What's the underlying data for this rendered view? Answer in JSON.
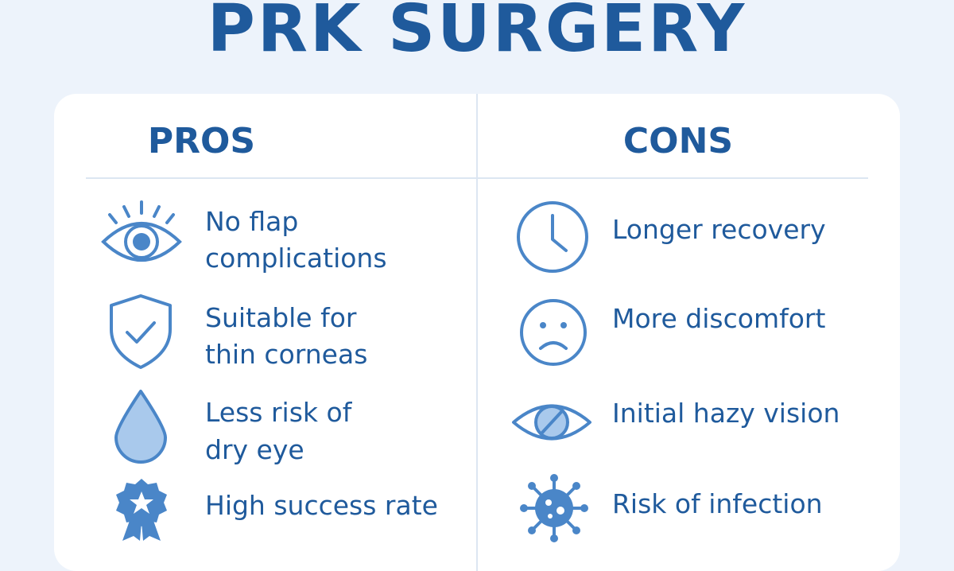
{
  "title": "PRK SURGERY",
  "pros": {
    "heading": "PROS",
    "items": [
      {
        "line1": "No flap",
        "line2": "complications",
        "icon": "eye-icon"
      },
      {
        "line1": "Suitable for",
        "line2": "thin corneas",
        "icon": "shield-check-icon"
      },
      {
        "line1": "Less risk of",
        "line2": "dry eye",
        "icon": "droplet-icon"
      },
      {
        "line1": "High success rate",
        "line2": "",
        "icon": "award-badge-icon"
      }
    ]
  },
  "cons": {
    "heading": "CONS",
    "items": [
      {
        "line1": "Longer recovery",
        "icon": "clock-icon"
      },
      {
        "line1": "More discomfort",
        "icon": "sad-face-icon"
      },
      {
        "line1": "Initial hazy vision",
        "icon": "hazy-eye-icon"
      },
      {
        "line1": "Risk of infection",
        "icon": "germ-icon"
      }
    ]
  },
  "colors": {
    "primary": "#1f5a9c",
    "icon_stroke": "#4a86c8",
    "icon_fill": "#a9c9ec",
    "background": "#edf3fb"
  }
}
